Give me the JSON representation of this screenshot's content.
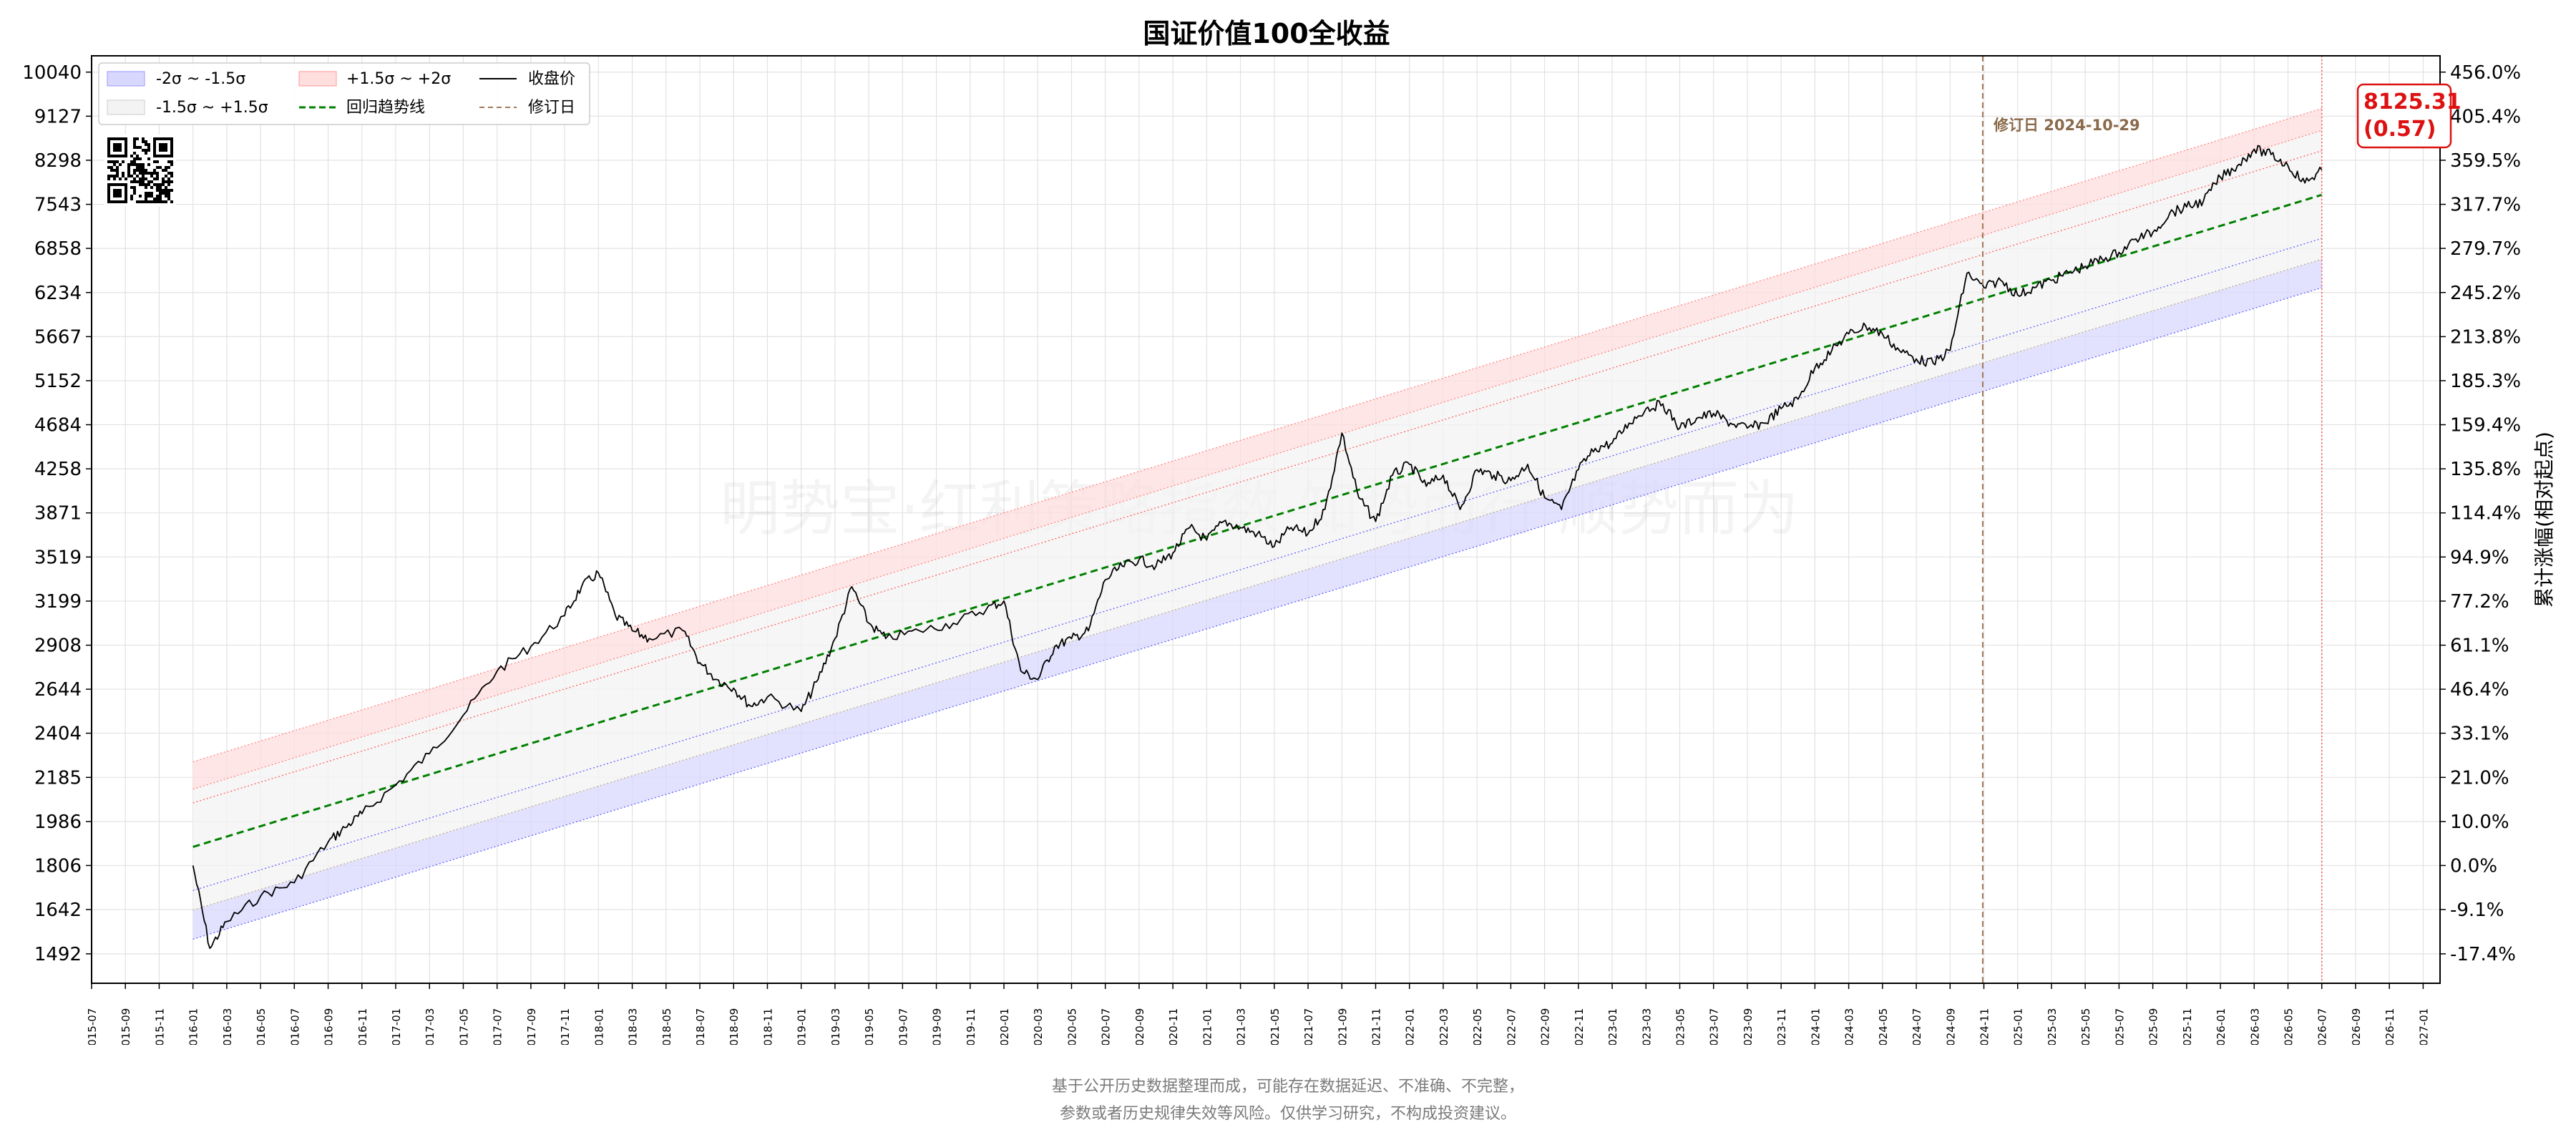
{
  "title": "国证价值100全收益",
  "right_axis_label": "累计涨幅(相对起点)",
  "watermark": "明势宝·红利策略指数·知势而行 顺势而为",
  "revision_label": "修订日 2024-10-29",
  "last_value_label": "8125.31",
  "last_sigma_label": "(0.57)",
  "footer_line1": "基于公开历史数据整理而成，可能存在数据延迟、不准确、不完整，",
  "footer_line2": "参数或者历史规律失效等风险。仅供学习研究，不构成投资建议。",
  "legend": {
    "band_low": "-2σ ~ -1.5σ",
    "band_high": "+1.5σ ~ +2σ",
    "close": "收盘价",
    "band_mid": "-1.5σ ~ +1.5σ",
    "trend": "回归趋势线",
    "revision": "修订日"
  },
  "colors": {
    "close": "#000000",
    "trend": "#008000",
    "band_low_fill": "#d8d8ff",
    "band_high_fill": "#ffdede",
    "band_mid_fill": "#f3f3f3",
    "revision_line": "#a0785a",
    "last_label": "#dd1111"
  },
  "chart_data": {
    "type": "line",
    "y_scale": "log",
    "left_ticks": [
      1492,
      1642,
      1806,
      1986,
      2185,
      2404,
      2644,
      2908,
      3199,
      3519,
      3871,
      4258,
      4684,
      5152,
      5667,
      6234,
      6858,
      7543,
      8298,
      9127,
      10040
    ],
    "right_ticks": [
      "-17.4%",
      "-9.1%",
      "0.0%",
      "10.0%",
      "21.0%",
      "33.1%",
      "46.4%",
      "61.1%",
      "77.2%",
      "94.9%",
      "114.4%",
      "135.8%",
      "159.4%",
      "185.3%",
      "213.8%",
      "245.2%",
      "279.7%",
      "317.7%",
      "359.5%",
      "405.4%",
      "456.0%"
    ],
    "ylim": [
      1400,
      10400
    ],
    "x_ticks": [
      "2015-07",
      "2015-09",
      "2015-11",
      "2016-01",
      "2016-03",
      "2016-05",
      "2016-07",
      "2016-09",
      "2016-11",
      "2017-01",
      "2017-03",
      "2017-05",
      "2017-07",
      "2017-09",
      "2017-11",
      "2018-01",
      "2018-03",
      "2018-05",
      "2018-07",
      "2018-09",
      "2018-11",
      "2019-01",
      "2019-03",
      "2019-05",
      "2019-07",
      "2019-09",
      "2019-11",
      "2020-01",
      "2020-03",
      "2020-05",
      "2020-07",
      "2020-09",
      "2020-11",
      "2021-01",
      "2021-03",
      "2021-05",
      "2021-07",
      "2021-09",
      "2021-11",
      "2022-01",
      "2022-03",
      "2022-05",
      "2022-07",
      "2022-09",
      "2022-11",
      "2023-01",
      "2023-03",
      "2023-05",
      "2023-07",
      "2023-09",
      "2023-11",
      "2024-01",
      "2024-03",
      "2024-05",
      "2024-07",
      "2024-09",
      "2024-11",
      "2025-01",
      "2025-03",
      "2025-05",
      "2025-07",
      "2025-09",
      "2025-11",
      "2026-01",
      "2026-03",
      "2026-05",
      "2026-07",
      "2026-09",
      "2026-11",
      "2027-01"
    ],
    "xlim": [
      "2015-07",
      "2027-02"
    ],
    "series": [
      {
        "name": "收盘价",
        "x": [
          "2016-01",
          "2016-02",
          "2016-03",
          "2016-05",
          "2016-07",
          "2016-09",
          "2016-10",
          "2016-11",
          "2017-01",
          "2017-03",
          "2017-05",
          "2017-07",
          "2017-09",
          "2017-11",
          "2017-12",
          "2018-01",
          "2018-02",
          "2018-03",
          "2018-04",
          "2018-06",
          "2018-07",
          "2018-08",
          "2018-09",
          "2018-10",
          "2018-11",
          "2019-01",
          "2019-02",
          "2019-03",
          "2019-04",
          "2019-05",
          "2019-06",
          "2019-08",
          "2019-10",
          "2019-12",
          "2020-01",
          "2020-02",
          "2020-03",
          "2020-04",
          "2020-05",
          "2020-06",
          "2020-07",
          "2020-08",
          "2020-09",
          "2020-10",
          "2020-11",
          "2020-12",
          "2021-01",
          "2021-02",
          "2021-03",
          "2021-04",
          "2021-05",
          "2021-06",
          "2021-07",
          "2021-08",
          "2021-09",
          "2021-10",
          "2021-11",
          "2021-12",
          "2022-01",
          "2022-02",
          "2022-03",
          "2022-04",
          "2022-05",
          "2022-06",
          "2022-07",
          "2022-08",
          "2022-09",
          "2022-10",
          "2022-11",
          "2022-12",
          "2023-01",
          "2023-02",
          "2023-03",
          "2023-04",
          "2023-05",
          "2023-06",
          "2023-07",
          "2023-08",
          "2023-09",
          "2023-10",
          "2023-11",
          "2023-12",
          "2024-01",
          "2024-02",
          "2024-03",
          "2024-04",
          "2024-05",
          "2024-06",
          "2024-07",
          "2024-08",
          "2024-09",
          "2024-10",
          "2024-11",
          "2024-12",
          "2025-01",
          "2025-02",
          "2025-03",
          "2025-04",
          "2025-05",
          "2025-06",
          "2025-07",
          "2025-08",
          "2025-09",
          "2025-10",
          "2025-11",
          "2025-12",
          "2026-01",
          "2026-02",
          "2026-03",
          "2026-04",
          "2026-05",
          "2026-06",
          "2026-07"
        ],
        "y": [
          1806,
          1510,
          1600,
          1690,
          1740,
          1900,
          1960,
          2020,
          2150,
          2300,
          2500,
          2750,
          2900,
          3100,
          3300,
          3400,
          3100,
          3000,
          2950,
          3000,
          2800,
          2700,
          2650,
          2550,
          2600,
          2520,
          2700,
          2950,
          3300,
          3050,
          2950,
          3000,
          3050,
          3150,
          3200,
          2750,
          2700,
          2900,
          2950,
          3000,
          3350,
          3450,
          3500,
          3450,
          3550,
          3750,
          3650,
          3800,
          3750,
          3700,
          3600,
          3750,
          3700,
          3900,
          4600,
          4000,
          3800,
          4200,
          4300,
          4100,
          4200,
          3900,
          4250,
          4200,
          4150,
          4300,
          4000,
          3900,
          4250,
          4450,
          4500,
          4700,
          4850,
          4900,
          4650,
          4750,
          4800,
          4700,
          4650,
          4700,
          4850,
          4950,
          5300,
          5500,
          5700,
          5800,
          5700,
          5500,
          5400,
          5350,
          5500,
          6500,
          6300,
          6400,
          6200,
          6300,
          6400,
          6500,
          6600,
          6700,
          6800,
          7000,
          7100,
          7400,
          7500,
          7600,
          8000,
          8200,
          8500,
          8400,
          8200,
          7900,
          8125
        ]
      },
      {
        "name": "回归趋势线",
        "x": [
          "2016-01",
          "2026-07"
        ],
        "y": [
          1880,
          7700
        ]
      }
    ],
    "bands": [
      {
        "name": "-2σ ~ -1.5σ",
        "lower": [
          1540,
          6300
        ],
        "upper": [
          1640,
          6700
        ]
      },
      {
        "name": "-1.5σ ~ +1.5σ",
        "lower": [
          1640,
          6700
        ],
        "upper": [
          2130,
          8850
        ]
      },
      {
        "name": "+1.5σ ~ +2σ",
        "lower": [
          2130,
          8850
        ],
        "upper": [
          2260,
          9280
        ]
      }
    ],
    "revision_date": "2024-10-29",
    "last_point": {
      "x": "2026-07",
      "y": 8125.31,
      "sigma": 0.57
    },
    "grid": true,
    "legend_position": "top-left"
  }
}
